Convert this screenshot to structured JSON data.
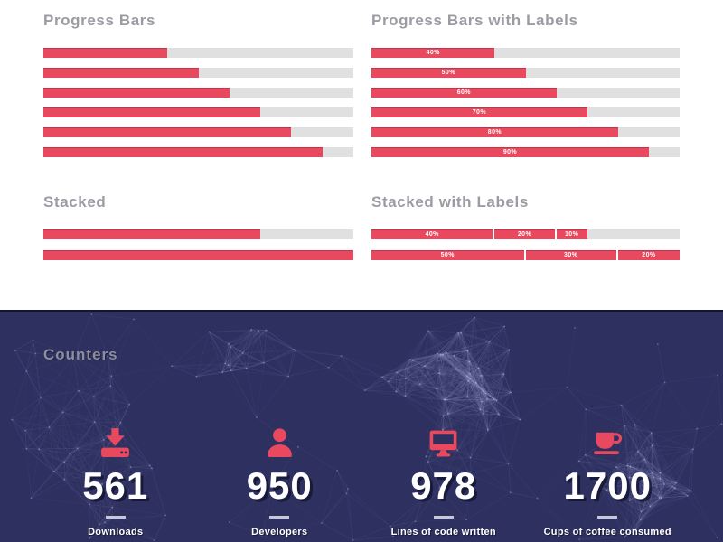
{
  "colors": {
    "accent": "#e8495f",
    "track": "#e0e0e0",
    "dark_background": "#2e3060",
    "heading_gray": "#9b9ca3"
  },
  "progress_bars": {
    "title": "Progress Bars",
    "values": [
      40,
      50,
      60,
      70,
      80,
      90
    ]
  },
  "progress_bars_labeled": {
    "title": "Progress Bars with Labels",
    "bars": [
      {
        "value": 40,
        "label": "40%"
      },
      {
        "value": 50,
        "label": "50%"
      },
      {
        "value": 60,
        "label": "60%"
      },
      {
        "value": 70,
        "label": "70%"
      },
      {
        "value": 80,
        "label": "80%"
      },
      {
        "value": 90,
        "label": "90%"
      }
    ]
  },
  "stacked": {
    "title": "Stacked",
    "bars": [
      {
        "segments": [
          40,
          20,
          10
        ]
      },
      {
        "segments": [
          50,
          30,
          20
        ]
      }
    ]
  },
  "stacked_labeled": {
    "title": "Stacked with Labels",
    "bars": [
      {
        "segments": [
          {
            "value": 40,
            "label": "40%"
          },
          {
            "value": 20,
            "label": "20%"
          },
          {
            "value": 10,
            "label": "10%"
          }
        ]
      },
      {
        "segments": [
          {
            "value": 50,
            "label": "50%"
          },
          {
            "value": 30,
            "label": "30%"
          },
          {
            "value": 20,
            "label": "20%"
          }
        ]
      }
    ]
  },
  "counters": {
    "title": "Counters",
    "items": [
      {
        "icon": "download-icon",
        "value": "561",
        "label": "Downloads"
      },
      {
        "icon": "user-icon",
        "value": "950",
        "label": "Developers"
      },
      {
        "icon": "monitor-icon",
        "value": "978",
        "label": "Lines of code written"
      },
      {
        "icon": "coffee-icon",
        "value": "1700",
        "label": "Cups of coffee consumed"
      }
    ]
  }
}
